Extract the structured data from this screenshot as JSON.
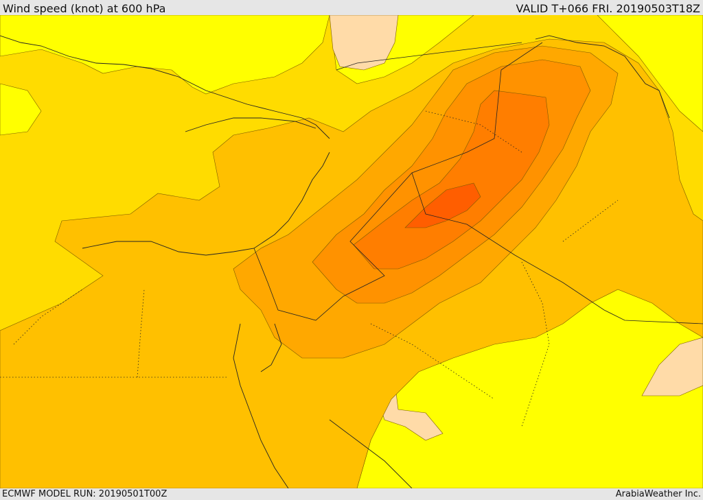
{
  "header": {
    "title": "Wind speed (knot) at 600 hPa",
    "valid": "VALID T+066 FRI. 20190503T18Z"
  },
  "footer": {
    "model_run": "ECMWF MODEL RUN: 20190501T00Z",
    "credit": "ArabiaWeather Inc."
  },
  "colors": {
    "band_lightest": "#ffdba8",
    "band_1": "#ffff00",
    "band_2": "#ffdc00",
    "band_3": "#ffc000",
    "band_4": "#ffa800",
    "band_5": "#ff9200",
    "band_6": "#ff7e00",
    "band_7": "#ff5e00"
  }
}
